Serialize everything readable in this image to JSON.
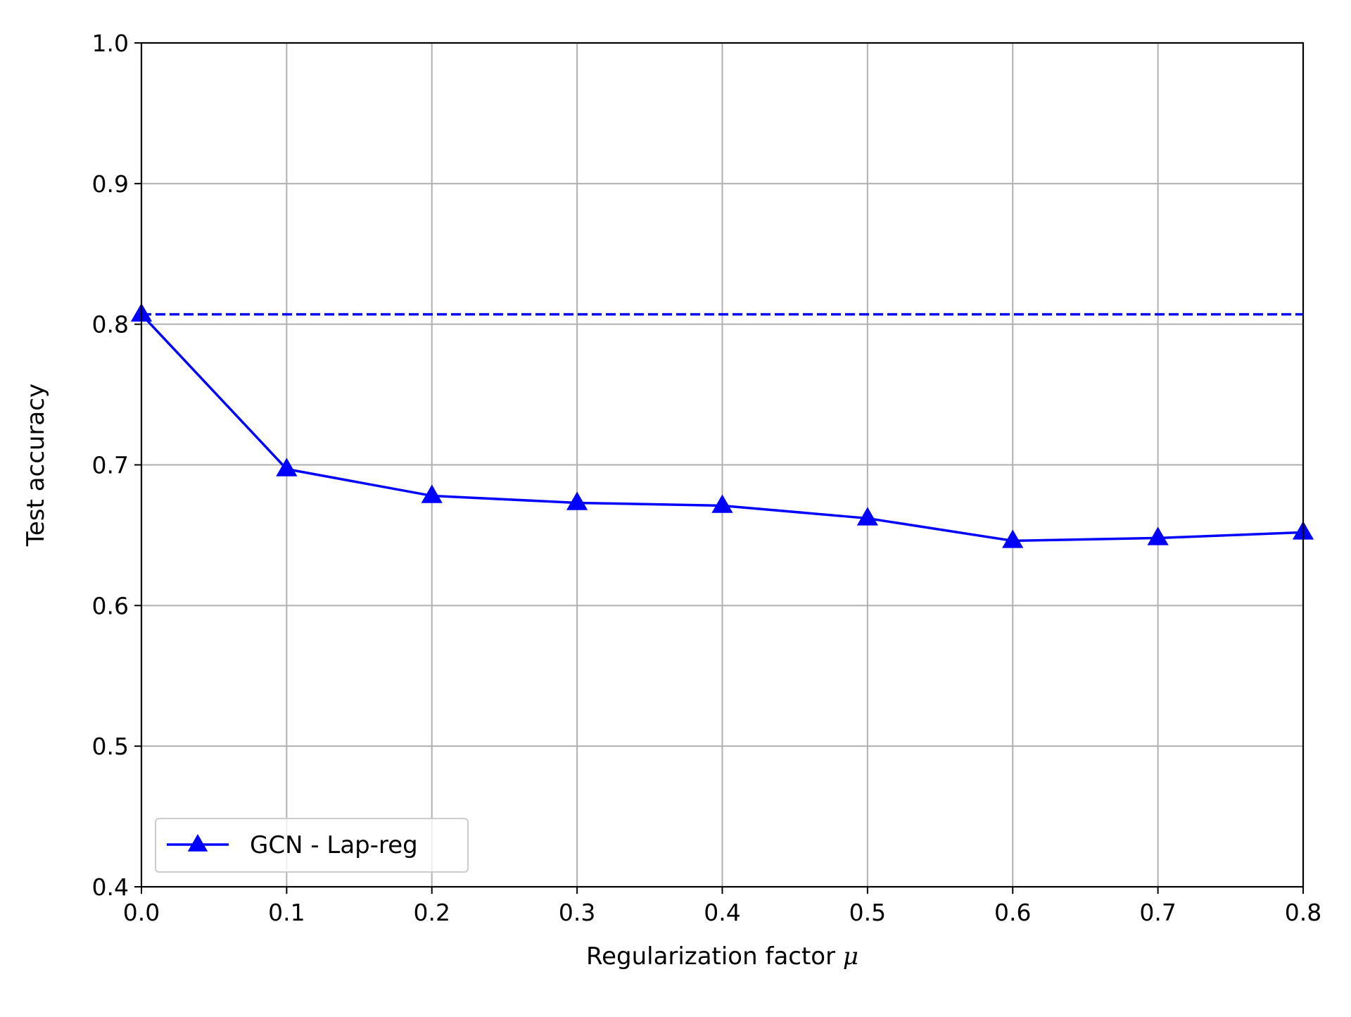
{
  "chart_data": {
    "type": "line",
    "title": "",
    "xlabel": "Regularization factor",
    "xlabel_symbol": "μ",
    "ylabel": "Test accuracy",
    "xlim": [
      0.0,
      0.8
    ],
    "ylim": [
      0.4,
      1.0
    ],
    "x_ticks": [
      "0.0",
      "0.1",
      "0.2",
      "0.3",
      "0.4",
      "0.5",
      "0.6",
      "0.7",
      "0.8"
    ],
    "y_ticks": [
      "0.4",
      "0.5",
      "0.6",
      "0.7",
      "0.8",
      "0.9",
      "1.0"
    ],
    "grid": true,
    "legend_position": "lower-left",
    "series": [
      {
        "name": "GCN - Lap-reg",
        "color": "#0000ff",
        "line_style": "solid",
        "marker": "triangle-up",
        "x": [
          0.0,
          0.1,
          0.2,
          0.3,
          0.4,
          0.5,
          0.6,
          0.7,
          0.8
        ],
        "y": [
          0.807,
          0.697,
          0.678,
          0.673,
          0.671,
          0.662,
          0.646,
          0.648,
          0.652
        ]
      }
    ],
    "reference_lines": [
      {
        "y": 0.807,
        "color": "#0000ff",
        "line_style": "dashed"
      }
    ]
  }
}
